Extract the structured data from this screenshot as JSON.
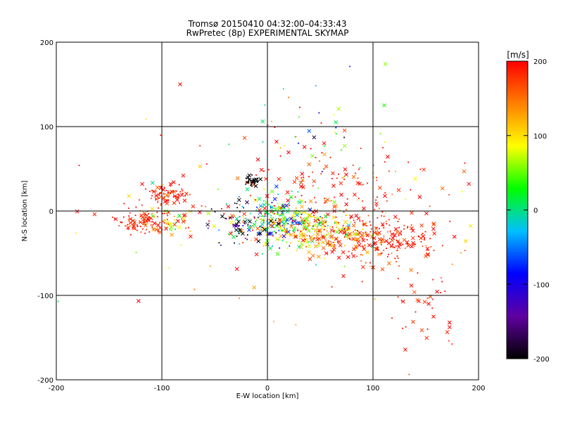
{
  "title_line1": "Tromsø 20150410 04:32:00–04:33:43",
  "title_line2": "RwPretec (8p) EXPERIMENTAL SKYMAP",
  "chart_data": {
    "type": "scatter",
    "xlabel": "E-W location [km]",
    "ylabel": "N-S location [km]",
    "xlim": [
      -200,
      200
    ],
    "ylim": [
      -200,
      200
    ],
    "xticks": [
      -200,
      -100,
      0,
      100,
      200
    ],
    "yticks": [
      -200,
      -100,
      0,
      100,
      200
    ],
    "grid_lines": [
      -100,
      0,
      100
    ],
    "grid": true,
    "markers": [
      "x (large)",
      "dot (small)"
    ],
    "colorbar": {
      "label": "[m/s]",
      "range": [
        -200,
        200
      ],
      "ticks": [
        200,
        100,
        0,
        -100,
        -200
      ],
      "colormap": [
        "#000000",
        "#6000a0",
        "#0000ff",
        "#00c0ff",
        "#00ff00",
        "#ffff00",
        "#ff8000",
        "#ff0000"
      ]
    },
    "clusters": [
      {
        "x": -115,
        "y": -12,
        "sx": 14,
        "sy": 7,
        "n": 110,
        "v": 185,
        "vs": 30
      },
      {
        "x": -95,
        "y": 18,
        "sx": 12,
        "sy": 6,
        "n": 90,
        "v": 190,
        "vs": 20
      },
      {
        "x": -90,
        "y": -15,
        "sx": 12,
        "sy": 8,
        "n": 30,
        "v": 110,
        "vs": 60
      },
      {
        "x": 10,
        "y": -10,
        "sx": 22,
        "sy": 14,
        "n": 260,
        "v": 20,
        "vs": 80
      },
      {
        "x": 50,
        "y": -25,
        "sx": 25,
        "sy": 12,
        "n": 200,
        "v": 120,
        "vs": 70
      },
      {
        "x": 105,
        "y": -35,
        "sx": 28,
        "sy": 14,
        "n": 220,
        "v": 185,
        "vs": 30
      },
      {
        "x": 60,
        "y": 30,
        "sx": 50,
        "sy": 25,
        "n": 120,
        "v": 190,
        "vs": 25
      },
      {
        "x": -15,
        "y": 35,
        "sx": 4,
        "sy": 3,
        "n": 40,
        "v": -200,
        "vs": 5
      },
      {
        "x": -30,
        "y": -15,
        "sx": 15,
        "sy": 15,
        "n": 50,
        "v": -180,
        "vs": 40
      },
      {
        "x": 150,
        "y": -110,
        "sx": 20,
        "sy": 30,
        "n": 40,
        "v": 190,
        "vs": 20
      },
      {
        "x": 45,
        "y": 110,
        "sx": 25,
        "sy": 30,
        "n": 30,
        "v": 0,
        "vs": 120
      },
      {
        "x": 0,
        "y": 0,
        "sx": 110,
        "sy": 60,
        "n": 120,
        "v": 160,
        "vs": 80
      }
    ]
  }
}
